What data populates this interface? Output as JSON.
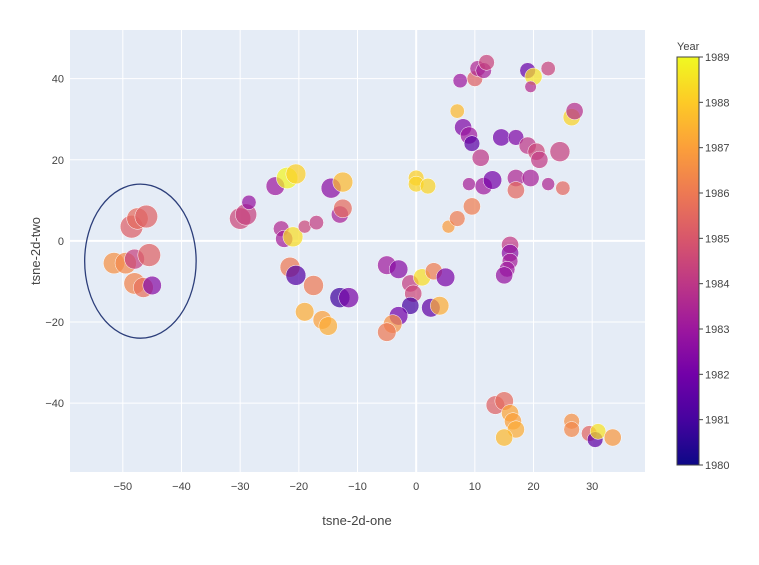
{
  "chart_data": {
    "type": "scatter",
    "xlabel": "tsne-2d-one",
    "ylabel": "tsne-2d-two",
    "xlim": [
      -59,
      39
    ],
    "ylim": [
      -57,
      52
    ],
    "x_ticks": [
      -50,
      -40,
      -30,
      -20,
      -10,
      0,
      10,
      20,
      30
    ],
    "y_ticks": [
      -40,
      -20,
      0,
      20,
      40
    ],
    "grid": true,
    "colorbar": {
      "title": "Year",
      "min": 1980,
      "max": 1989,
      "ticks": [
        1980,
        1981,
        1982,
        1983,
        1984,
        1985,
        1986,
        1987,
        1988,
        1989
      ],
      "colorscale": [
        "#0d0887",
        "#46039f",
        "#7201a8",
        "#9c179e",
        "#bd3786",
        "#d8576b",
        "#ed7953",
        "#fb9f3a",
        "#fdca26",
        "#f0f921"
      ]
    },
    "annotation": {
      "shape": "ellipse",
      "center": [
        -47,
        -5
      ],
      "radius_x": 9.5,
      "radius_y": 19,
      "color": "#2c3e7a"
    },
    "points": [
      {
        "x": -51.5,
        "y": -5.5,
        "year": 1986.6,
        "size": 1.1
      },
      {
        "x": -49.5,
        "y": -5.5,
        "year": 1986.4,
        "size": 1.1
      },
      {
        "x": -48.5,
        "y": 3.5,
        "year": 1985.2,
        "size": 1.2
      },
      {
        "x": -47.5,
        "y": 5.5,
        "year": 1985.6,
        "size": 1.1
      },
      {
        "x": -46,
        "y": 6,
        "year": 1985.3,
        "size": 1.2
      },
      {
        "x": -48,
        "y": -4.5,
        "year": 1984.3,
        "size": 1.0
      },
      {
        "x": -45.5,
        "y": -3.5,
        "year": 1985.3,
        "size": 1.2
      },
      {
        "x": -48,
        "y": -10.5,
        "year": 1986.3,
        "size": 1.1
      },
      {
        "x": -46.5,
        "y": -11.5,
        "year": 1985.7,
        "size": 1.0
      },
      {
        "x": -45,
        "y": -11,
        "year": 1982.5,
        "size": 0.9
      },
      {
        "x": -30,
        "y": 5.5,
        "year": 1984.5,
        "size": 1.1
      },
      {
        "x": -29,
        "y": 6.5,
        "year": 1984.3,
        "size": 1.1
      },
      {
        "x": -28.5,
        "y": 9.5,
        "year": 1982.8,
        "size": 0.6
      },
      {
        "x": -24,
        "y": 13.5,
        "year": 1983,
        "size": 0.9
      },
      {
        "x": -22,
        "y": 15.5,
        "year": 1988.9,
        "size": 1.1
      },
      {
        "x": -20.5,
        "y": 16.5,
        "year": 1988.1,
        "size": 1.0
      },
      {
        "x": -23,
        "y": 3,
        "year": 1983.6,
        "size": 0.7
      },
      {
        "x": -22.5,
        "y": 0.5,
        "year": 1983.2,
        "size": 0.8
      },
      {
        "x": -21,
        "y": 1,
        "year": 1988.4,
        "size": 1.0
      },
      {
        "x": -19,
        "y": 3.5,
        "year": 1984.5,
        "size": 0.5
      },
      {
        "x": -17,
        "y": 4.5,
        "year": 1984.2,
        "size": 0.6
      },
      {
        "x": -21.5,
        "y": -6.5,
        "year": 1986,
        "size": 1.0
      },
      {
        "x": -20.5,
        "y": -8.5,
        "year": 1981.3,
        "size": 1.0
      },
      {
        "x": -17.5,
        "y": -11,
        "year": 1986,
        "size": 1.0
      },
      {
        "x": -19,
        "y": -17.5,
        "year": 1987.3,
        "size": 0.9
      },
      {
        "x": -16,
        "y": -19.5,
        "year": 1987,
        "size": 0.9
      },
      {
        "x": -15,
        "y": -21,
        "year": 1987.3,
        "size": 0.9
      },
      {
        "x": -14.5,
        "y": 13,
        "year": 1982.6,
        "size": 1.0
      },
      {
        "x": -12.5,
        "y": 14.5,
        "year": 1987.6,
        "size": 1.0
      },
      {
        "x": -13,
        "y": 6.5,
        "year": 1983.3,
        "size": 0.8
      },
      {
        "x": -12.5,
        "y": 8,
        "year": 1985.6,
        "size": 0.9
      },
      {
        "x": -13,
        "y": -14,
        "year": 1980.9,
        "size": 1.0
      },
      {
        "x": -11.5,
        "y": -14,
        "year": 1982.2,
        "size": 1.0
      },
      {
        "x": -5,
        "y": -6,
        "year": 1983.1,
        "size": 0.9
      },
      {
        "x": -3,
        "y": -7,
        "year": 1982.5,
        "size": 0.9
      },
      {
        "x": -1,
        "y": -10.5,
        "year": 1984.2,
        "size": 0.8
      },
      {
        "x": -0.5,
        "y": -13,
        "year": 1984.5,
        "size": 0.8
      },
      {
        "x": -1,
        "y": -16,
        "year": 1981,
        "size": 0.8
      },
      {
        "x": -3,
        "y": -18.5,
        "year": 1982,
        "size": 0.9
      },
      {
        "x": -4,
        "y": -20.5,
        "year": 1986.6,
        "size": 0.9
      },
      {
        "x": -5,
        "y": -22.5,
        "year": 1986,
        "size": 0.9
      },
      {
        "x": 1,
        "y": -9,
        "year": 1988.4,
        "size": 0.8
      },
      {
        "x": 3,
        "y": -7.5,
        "year": 1986.1,
        "size": 0.8
      },
      {
        "x": 5,
        "y": -9,
        "year": 1982.2,
        "size": 0.9
      },
      {
        "x": 2.5,
        "y": -16.5,
        "year": 1981.6,
        "size": 0.9
      },
      {
        "x": 4,
        "y": -16,
        "year": 1987.3,
        "size": 0.9
      },
      {
        "x": 0,
        "y": 15.5,
        "year": 1988.1,
        "size": 0.7
      },
      {
        "x": 0,
        "y": 14,
        "year": 1988.2,
        "size": 0.7
      },
      {
        "x": 2,
        "y": 13.5,
        "year": 1988.2,
        "size": 0.7
      },
      {
        "x": 5.5,
        "y": 3.5,
        "year": 1986.9,
        "size": 0.5
      },
      {
        "x": 7,
        "y": 5.5,
        "year": 1986.1,
        "size": 0.7
      },
      {
        "x": 9.5,
        "y": 8.5,
        "year": 1986.1,
        "size": 0.8
      },
      {
        "x": 9,
        "y": 14,
        "year": 1983.3,
        "size": 0.5
      },
      {
        "x": 11.5,
        "y": 13.5,
        "year": 1983.1,
        "size": 0.8
      },
      {
        "x": 13,
        "y": 15,
        "year": 1982.1,
        "size": 0.9
      },
      {
        "x": 11,
        "y": 20.5,
        "year": 1984,
        "size": 0.8
      },
      {
        "x": 8,
        "y": 28,
        "year": 1982.3,
        "size": 0.8
      },
      {
        "x": 9,
        "y": 26,
        "year": 1983,
        "size": 0.8
      },
      {
        "x": 9.5,
        "y": 24,
        "year": 1981.5,
        "size": 0.7
      },
      {
        "x": 7,
        "y": 32,
        "year": 1987.6,
        "size": 0.6
      },
      {
        "x": 7.5,
        "y": 39.5,
        "year": 1983,
        "size": 0.6
      },
      {
        "x": 10,
        "y": 40,
        "year": 1985.3,
        "size": 0.7
      },
      {
        "x": 10.5,
        "y": 42.5,
        "year": 1983.5,
        "size": 0.7
      },
      {
        "x": 11.5,
        "y": 42,
        "year": 1983.3,
        "size": 0.7
      },
      {
        "x": 12,
        "y": 44,
        "year": 1984.4,
        "size": 0.7
      },
      {
        "x": 14.5,
        "y": 25.5,
        "year": 1982,
        "size": 0.8
      },
      {
        "x": 17,
        "y": 25.5,
        "year": 1982.3,
        "size": 0.7
      },
      {
        "x": 19,
        "y": 23.5,
        "year": 1984,
        "size": 0.8
      },
      {
        "x": 20.5,
        "y": 22,
        "year": 1984.5,
        "size": 0.8
      },
      {
        "x": 21,
        "y": 20,
        "year": 1984.1,
        "size": 0.8
      },
      {
        "x": 24.5,
        "y": 22,
        "year": 1984.3,
        "size": 1.0
      },
      {
        "x": 17,
        "y": 15.5,
        "year": 1983.5,
        "size": 0.8
      },
      {
        "x": 17,
        "y": 12.5,
        "year": 1985.5,
        "size": 0.8
      },
      {
        "x": 19.5,
        "y": 15.5,
        "year": 1983.3,
        "size": 0.8
      },
      {
        "x": 22.5,
        "y": 14,
        "year": 1983.5,
        "size": 0.5
      },
      {
        "x": 25,
        "y": 13,
        "year": 1985.5,
        "size": 0.6
      },
      {
        "x": 19,
        "y": 42,
        "year": 1981.8,
        "size": 0.7
      },
      {
        "x": 20,
        "y": 40.5,
        "year": 1988.5,
        "size": 0.8
      },
      {
        "x": 19.5,
        "y": 38,
        "year": 1983.7,
        "size": 0.4
      },
      {
        "x": 22.5,
        "y": 42.5,
        "year": 1984.4,
        "size": 0.6
      },
      {
        "x": 26.5,
        "y": 30.5,
        "year": 1988.2,
        "size": 0.8
      },
      {
        "x": 27,
        "y": 32,
        "year": 1983.8,
        "size": 0.8
      },
      {
        "x": 16,
        "y": -1,
        "year": 1984.1,
        "size": 0.8
      },
      {
        "x": 16,
        "y": -3,
        "year": 1982.6,
        "size": 0.8
      },
      {
        "x": 16,
        "y": -5,
        "year": 1983.2,
        "size": 0.7
      },
      {
        "x": 15.5,
        "y": -7,
        "year": 1983.1,
        "size": 0.7
      },
      {
        "x": 15,
        "y": -8.5,
        "year": 1982.8,
        "size": 0.8
      },
      {
        "x": 13.5,
        "y": -40.5,
        "year": 1985.3,
        "size": 0.9
      },
      {
        "x": 15,
        "y": -39.5,
        "year": 1985.6,
        "size": 0.9
      },
      {
        "x": 16,
        "y": -42.5,
        "year": 1987.1,
        "size": 0.8
      },
      {
        "x": 16.5,
        "y": -44.5,
        "year": 1987,
        "size": 0.8
      },
      {
        "x": 17,
        "y": -46.5,
        "year": 1987.3,
        "size": 0.8
      },
      {
        "x": 15,
        "y": -48.5,
        "year": 1987.6,
        "size": 0.8
      },
      {
        "x": 26.5,
        "y": -44.5,
        "year": 1986.6,
        "size": 0.7
      },
      {
        "x": 26.5,
        "y": -46.5,
        "year": 1986.4,
        "size": 0.7
      },
      {
        "x": 29.5,
        "y": -47.5,
        "year": 1985.4,
        "size": 0.7
      },
      {
        "x": 30.5,
        "y": -49,
        "year": 1981.6,
        "size": 0.7
      },
      {
        "x": 31,
        "y": -47,
        "year": 1988.5,
        "size": 0.7
      },
      {
        "x": 33.5,
        "y": -48.5,
        "year": 1986.8,
        "size": 0.8
      }
    ]
  }
}
